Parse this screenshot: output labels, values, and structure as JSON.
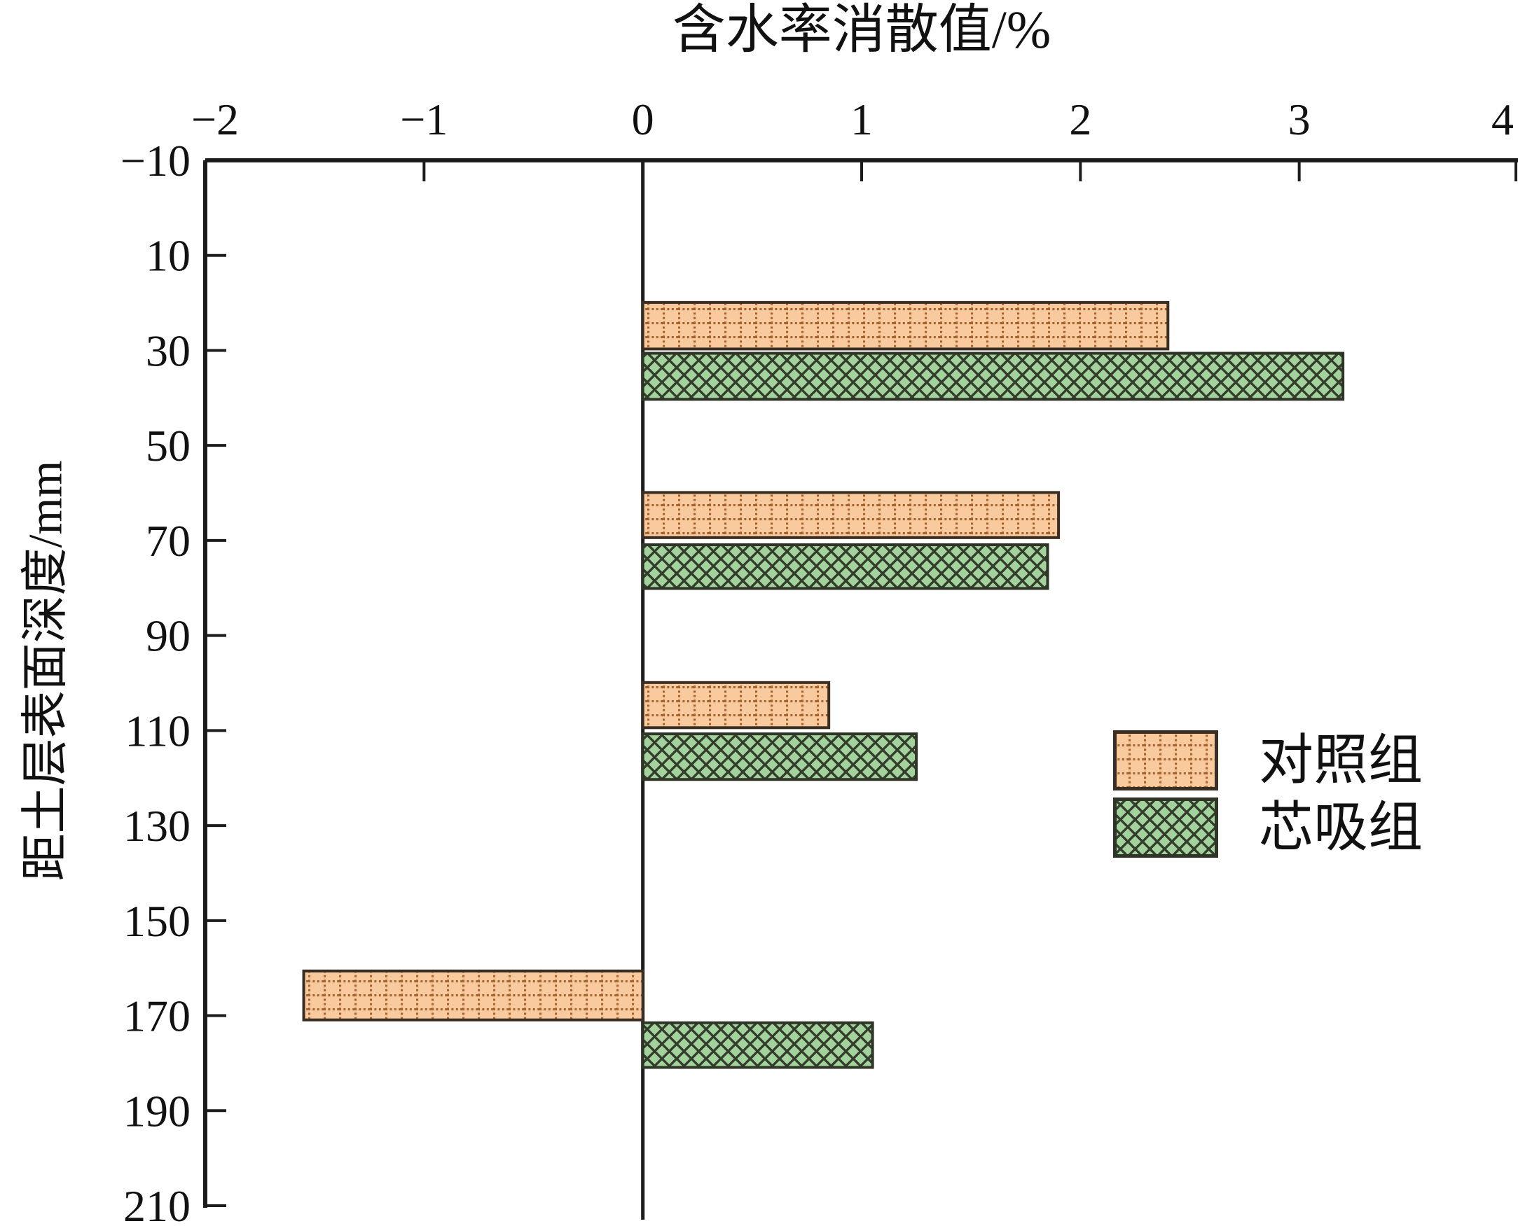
{
  "title": "含水率消散值/%",
  "y_axis_label": "距土层表面深度/mm",
  "legend": {
    "items": [
      {
        "label": "对照组",
        "series": 0
      },
      {
        "label": "芯吸组",
        "series": 1
      }
    ]
  },
  "colors": {
    "background": "#FFFFFF",
    "axis": "#1C1C1C",
    "text": "#111111"
  },
  "chart_data": {
    "type": "bar",
    "orientation": "horizontal",
    "title": "含水率消散值/%",
    "xlabel": "含水率消散值/%",
    "ylabel": "距土层表面深度/mm",
    "xlim": [
      -2,
      4
    ],
    "ylim": [
      -10,
      210
    ],
    "x_ticks": [
      -2,
      -1,
      0,
      1,
      2,
      3,
      4
    ],
    "y_ticks": [
      -10,
      10,
      30,
      50,
      70,
      90,
      110,
      130,
      150,
      170,
      190,
      210
    ],
    "grid": false,
    "legend_position": "center-right",
    "categories_depth_mm": [
      30,
      70,
      110,
      170
    ],
    "series": [
      {
        "name": "对照组",
        "key": "control",
        "values": [
          2.4,
          1.9,
          0.85,
          -1.55
        ],
        "fill": "#F9CA9E",
        "pattern_color": "#A5642F",
        "border": "#3A2E22",
        "pattern": "dotted-grid"
      },
      {
        "name": "芯吸组",
        "key": "wicking",
        "values": [
          3.2,
          1.85,
          1.25,
          1.05
        ],
        "fill": "#A2D39D",
        "pattern_color": "#343D2B",
        "border": "#2F3526",
        "pattern": "diagonal-weave"
      }
    ],
    "bars": [
      {
        "series": 0,
        "depth_from": 19.9,
        "depth_to": 29.7,
        "value": 2.4
      },
      {
        "series": 1,
        "depth_from": 30.6,
        "depth_to": 40.3,
        "value": 3.2
      },
      {
        "series": 0,
        "depth_from": 59.9,
        "depth_to": 69.4,
        "value": 1.9
      },
      {
        "series": 1,
        "depth_from": 70.9,
        "depth_to": 80.1,
        "value": 1.85
      },
      {
        "series": 0,
        "depth_from": 99.9,
        "depth_to": 109.4,
        "value": 0.85
      },
      {
        "series": 1,
        "depth_from": 110.7,
        "depth_to": 120.3,
        "value": 1.25
      },
      {
        "series": 0,
        "depth_from": 160.6,
        "depth_to": 170.9,
        "value": -1.55
      },
      {
        "series": 1,
        "depth_from": 171.5,
        "depth_to": 180.9,
        "value": 1.05
      }
    ]
  }
}
